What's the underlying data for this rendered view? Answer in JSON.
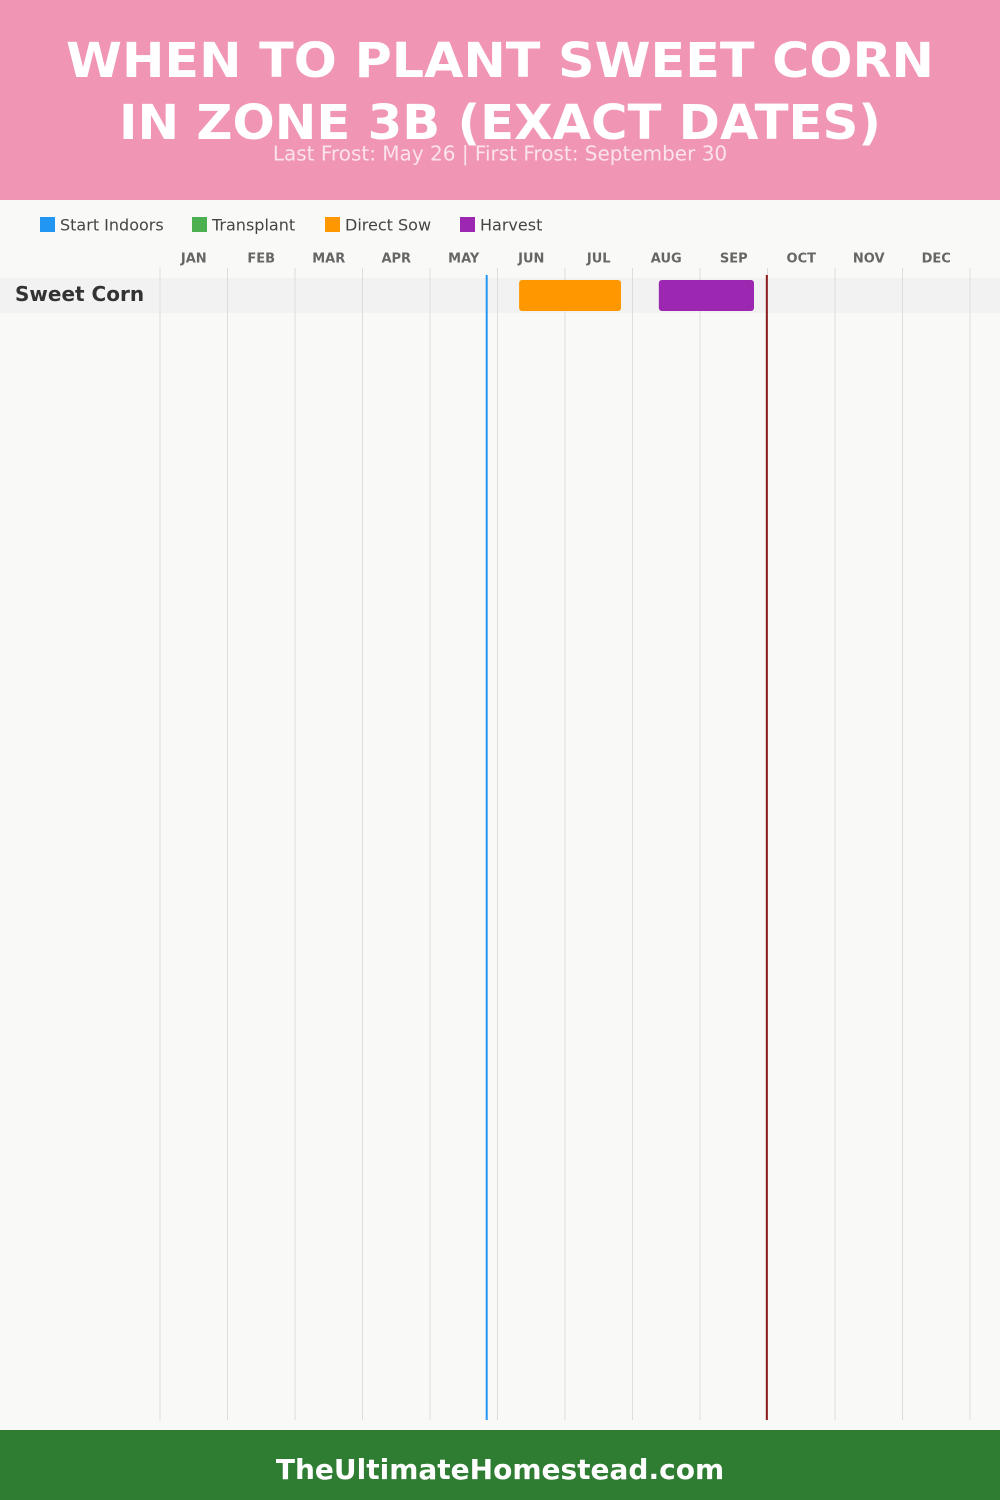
{
  "chart_data": {
    "type": "gantt",
    "title": [
      "WHEN TO PLANT SWEET CORN",
      "IN ZONE 3B (EXACT DATES)"
    ],
    "subtitle": "Last Frost: May 26 | First Frost: September 30",
    "categories": [
      "JAN",
      "FEB",
      "MAR",
      "APR",
      "MAY",
      "JUN",
      "JUL",
      "AUG",
      "SEP",
      "OCT",
      "NOV",
      "DEC"
    ],
    "xlim": [
      0,
      12
    ],
    "rows": [
      "Sweet Corn"
    ],
    "series": [
      {
        "name": "Start Indoors",
        "color": "#2196f3",
        "start": [
          null
        ],
        "end": [
          null
        ]
      },
      {
        "name": "Transplant",
        "color": "#4caf50",
        "start": [
          null
        ],
        "end": [
          null
        ]
      },
      {
        "name": "Direct Sow",
        "color": "#ff9800",
        "start": [
          5.32
        ],
        "end": [
          6.83
        ]
      },
      {
        "name": "Harvest",
        "color": "#9c27b0",
        "start": [
          7.39
        ],
        "end": [
          8.8
        ]
      }
    ],
    "markers": [
      {
        "value": 4.84,
        "color": "#2196f3"
      },
      {
        "value": 8.99,
        "color": "#8b1a1a"
      }
    ],
    "footer": "TheUltimateHomestead.com"
  }
}
